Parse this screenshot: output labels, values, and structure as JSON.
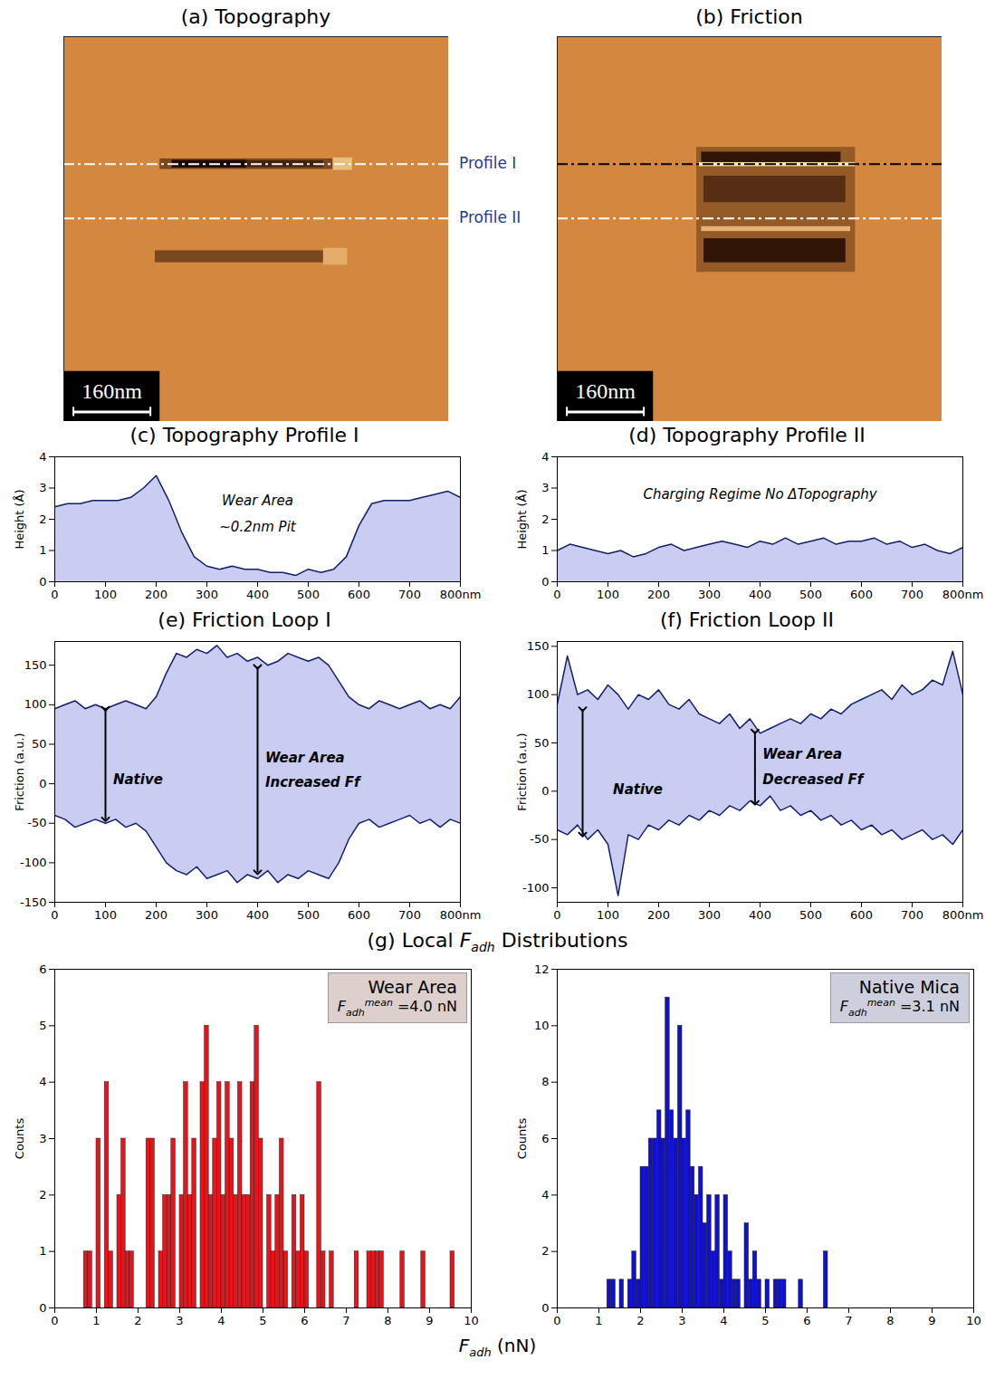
{
  "chart_data": [
    {
      "type": "image",
      "title": "(a) Topography",
      "xlim": [
        0,
        800
      ],
      "ylim": [
        0,
        800
      ],
      "zlim": [
        -1,
        1
      ],
      "background": 0,
      "features": [
        {
          "x0": 200,
          "x1": 560,
          "y0": 254,
          "y1": 276,
          "level": -0.5
        },
        {
          "x0": 225,
          "x1": 380,
          "y0": 257,
          "y1": 273,
          "level": -1
        },
        {
          "x0": 380,
          "x1": 540,
          "y0": 258,
          "y1": 272,
          "level": -0.8
        },
        {
          "x0": 560,
          "x1": 600,
          "y0": 252,
          "y1": 278,
          "level": 0.5
        },
        {
          "x0": 190,
          "x1": 540,
          "y0": 445,
          "y1": 470,
          "level": -0.5
        },
        {
          "x0": 540,
          "x1": 590,
          "y0": 440,
          "y1": 475,
          "level": 0.35
        }
      ],
      "scale_bar": {
        "length": 160,
        "label": "160nm"
      },
      "profiles": [
        {
          "name": "Profile I",
          "y": 265,
          "color": "#ffffff"
        },
        {
          "name": "Profile II",
          "y": 378,
          "color": "#ffffff"
        }
      ]
    },
    {
      "type": "image",
      "title": "(b) Friction",
      "xlim": [
        0,
        800
      ],
      "ylim": [
        0,
        800
      ],
      "zlim": [
        -1,
        1
      ],
      "background": 0,
      "features": [
        {
          "x0": 290,
          "x1": 620,
          "y0": 230,
          "y1": 490,
          "level": -0.35
        },
        {
          "x0": 300,
          "x1": 590,
          "y0": 240,
          "y1": 262,
          "level": -0.9
        },
        {
          "x0": 295,
          "x1": 620,
          "y0": 262,
          "y1": 270,
          "level": 0.9
        },
        {
          "x0": 305,
          "x1": 600,
          "y0": 290,
          "y1": 345,
          "level": -0.7
        },
        {
          "x0": 300,
          "x1": 610,
          "y0": 395,
          "y1": 405,
          "level": 0.4
        },
        {
          "x0": 305,
          "x1": 600,
          "y0": 420,
          "y1": 470,
          "level": -0.9
        }
      ],
      "scale_bar": {
        "length": 160,
        "label": "160nm"
      },
      "profiles": [
        {
          "y": 265,
          "color": "#000000"
        },
        {
          "y": 378,
          "color": "#ffffff"
        }
      ]
    },
    {
      "type": "area",
      "title": "(c) Topography Profile I",
      "ylabel": "Height (Å)",
      "x": [
        0,
        25,
        50,
        75,
        100,
        125,
        150,
        175,
        200,
        225,
        250,
        275,
        300,
        325,
        350,
        375,
        400,
        425,
        450,
        475,
        500,
        525,
        550,
        575,
        600,
        625,
        650,
        675,
        700,
        725,
        750,
        775,
        800
      ],
      "values": [
        2.4,
        2.5,
        2.5,
        2.6,
        2.6,
        2.6,
        2.7,
        3.0,
        3.4,
        2.6,
        1.6,
        0.8,
        0.5,
        0.4,
        0.5,
        0.4,
        0.4,
        0.3,
        0.3,
        0.2,
        0.4,
        0.3,
        0.4,
        0.8,
        1.8,
        2.5,
        2.6,
        2.6,
        2.6,
        2.7,
        2.8,
        2.9,
        2.7
      ],
      "xlim": [
        0,
        800
      ],
      "xticks": [
        0,
        100,
        200,
        300,
        400,
        500,
        600,
        700,
        {
          "value": 800,
          "label": "800nm"
        }
      ],
      "ylim": [
        0,
        4
      ],
      "yticks": [
        0,
        1,
        2,
        3,
        4
      ],
      "annotations": [
        {
          "x": 400,
          "y": 2.6,
          "text": "Wear Area"
        },
        {
          "x": 400,
          "y": 1.75,
          "text": "~0.2nm Pit"
        }
      ]
    },
    {
      "type": "area",
      "title": "(d) Topography Profile II",
      "ylabel": "Height (Å)",
      "x": [
        0,
        25,
        50,
        75,
        100,
        125,
        150,
        175,
        200,
        225,
        250,
        275,
        300,
        325,
        350,
        375,
        400,
        425,
        450,
        475,
        500,
        525,
        550,
        575,
        600,
        625,
        650,
        675,
        700,
        725,
        750,
        775,
        800
      ],
      "values": [
        1.0,
        1.2,
        1.1,
        1.0,
        0.9,
        1.0,
        0.8,
        0.9,
        1.1,
        1.2,
        1.0,
        1.1,
        1.2,
        1.3,
        1.2,
        1.1,
        1.3,
        1.2,
        1.4,
        1.2,
        1.3,
        1.4,
        1.2,
        1.3,
        1.3,
        1.4,
        1.2,
        1.3,
        1.1,
        1.2,
        1.0,
        0.9,
        1.1
      ],
      "xlim": [
        0,
        800
      ],
      "xticks": [
        0,
        100,
        200,
        300,
        400,
        500,
        600,
        700,
        {
          "value": 800,
          "label": "800nm"
        }
      ],
      "ylim": [
        0,
        4
      ],
      "yticks": [
        0,
        1,
        2,
        3,
        4
      ],
      "annotations": [
        {
          "x": 400,
          "y": 2.8,
          "text": "Charging Regime No ΔTopography"
        }
      ]
    },
    {
      "type": "band",
      "title": "(e) Friction Loop I",
      "ylabel": "Friction (a.u.)",
      "x": [
        0,
        20,
        40,
        60,
        80,
        100,
        120,
        140,
        160,
        180,
        200,
        220,
        240,
        260,
        280,
        300,
        320,
        340,
        360,
        380,
        400,
        420,
        440,
        460,
        480,
        500,
        520,
        540,
        560,
        580,
        600,
        620,
        640,
        660,
        680,
        700,
        720,
        740,
        760,
        780,
        800
      ],
      "upper": [
        95,
        100,
        105,
        95,
        100,
        95,
        100,
        105,
        100,
        95,
        110,
        140,
        165,
        160,
        170,
        165,
        175,
        160,
        165,
        155,
        160,
        150,
        155,
        165,
        160,
        155,
        160,
        150,
        130,
        110,
        100,
        95,
        105,
        100,
        95,
        100,
        105,
        95,
        100,
        95,
        110
      ],
      "lower": [
        -40,
        -45,
        -55,
        -50,
        -45,
        -50,
        -45,
        -55,
        -50,
        -60,
        -80,
        -100,
        -110,
        -115,
        -105,
        -120,
        -115,
        -110,
        -125,
        -115,
        -120,
        -110,
        -125,
        -115,
        -120,
        -110,
        -115,
        -120,
        -100,
        -70,
        -50,
        -45,
        -55,
        -50,
        -45,
        -40,
        -50,
        -45,
        -55,
        -45,
        -50
      ],
      "xlim": [
        0,
        800
      ],
      "xticks": [
        0,
        100,
        200,
        300,
        400,
        500,
        600,
        700,
        {
          "value": 800,
          "label": "800nm"
        }
      ],
      "ylim": [
        -150,
        180
      ],
      "yticks": [
        -150,
        -100,
        -50,
        0,
        50,
        100,
        150
      ],
      "arrows": [
        {
          "x": 100,
          "y1": 95,
          "y2": -45
        },
        {
          "x": 400,
          "y1": 148,
          "y2": -112
        }
      ],
      "annotations": [
        {
          "x": 115,
          "y": 5,
          "text": "Native"
        },
        {
          "x": 415,
          "y": 32,
          "text": "Wear Area"
        },
        {
          "x": 415,
          "y": 2,
          "text": "Increased Ff"
        }
      ]
    },
    {
      "type": "band",
      "title": "(f) Friction Loop II",
      "ylabel": "Friction (a.u.)",
      "x": [
        0,
        20,
        40,
        60,
        80,
        100,
        120,
        140,
        160,
        180,
        200,
        220,
        240,
        260,
        280,
        300,
        320,
        340,
        360,
        380,
        400,
        420,
        440,
        460,
        480,
        500,
        520,
        540,
        560,
        580,
        600,
        620,
        640,
        660,
        680,
        700,
        720,
        740,
        760,
        780,
        800
      ],
      "upper": [
        90,
        140,
        100,
        105,
        95,
        110,
        100,
        85,
        100,
        95,
        105,
        90,
        85,
        95,
        80,
        75,
        70,
        80,
        65,
        75,
        60,
        65,
        70,
        75,
        70,
        80,
        75,
        85,
        80,
        90,
        95,
        100,
        105,
        95,
        110,
        100,
        105,
        115,
        110,
        145,
        100
      ],
      "lower": [
        -40,
        -45,
        -35,
        -50,
        -40,
        -55,
        -108,
        -45,
        -50,
        -35,
        -40,
        -30,
        -35,
        -25,
        -30,
        -20,
        -25,
        -15,
        -20,
        -10,
        -15,
        -5,
        -20,
        -15,
        -25,
        -20,
        -30,
        -25,
        -35,
        -30,
        -40,
        -35,
        -45,
        -40,
        -50,
        -45,
        -40,
        -50,
        -45,
        -55,
        -40
      ],
      "xlim": [
        0,
        800
      ],
      "xticks": [
        0,
        100,
        200,
        300,
        400,
        500,
        600,
        700,
        {
          "value": 800,
          "label": "800nm"
        }
      ],
      "ylim": [
        -115,
        155
      ],
      "yticks": [
        -100,
        -50,
        0,
        50,
        100,
        150
      ],
      "arrows": [
        {
          "x": 50,
          "y1": 85,
          "y2": -45
        },
        {
          "x": 390,
          "y1": 62,
          "y2": -12
        }
      ],
      "annotations": [
        {
          "x": 110,
          "y": 2,
          "text": "Native"
        },
        {
          "x": 405,
          "y": 38,
          "text": "Wear Area"
        },
        {
          "x": 405,
          "y": 12,
          "text": "Decreased Ff"
        }
      ]
    },
    {
      "type": "histogram",
      "title": "Wear Area",
      "color": "#e8141b",
      "ylabel": "Counts",
      "stat_symbol": "F",
      "stat_subscript": "adh",
      "stat_superscript": "mean",
      "stat_text": "=4.0 nN",
      "bins": [
        0.7,
        0.8,
        0.9,
        1.0,
        1.1,
        1.2,
        1.3,
        1.4,
        1.5,
        1.6,
        1.7,
        1.8,
        1.9,
        2.0,
        2.1,
        2.2,
        2.3,
        2.4,
        2.5,
        2.6,
        2.7,
        2.8,
        2.9,
        3.0,
        3.1,
        3.2,
        3.3,
        3.4,
        3.5,
        3.6,
        3.7,
        3.8,
        3.9,
        4.0,
        4.1,
        4.2,
        4.3,
        4.4,
        4.5,
        4.6,
        4.7,
        4.8,
        4.9,
        5.0,
        5.1,
        5.2,
        5.3,
        5.4,
        5.5,
        5.6,
        5.7,
        5.8,
        5.9,
        6.0,
        6.1,
        6.2,
        6.3,
        6.4,
        6.5,
        6.6,
        6.7,
        6.8,
        6.9,
        7.0,
        7.1,
        7.2,
        7.3,
        7.4,
        7.5,
        7.6,
        7.7,
        7.8,
        7.9,
        8.0,
        8.1,
        8.2,
        8.3,
        8.4,
        8.5,
        8.6,
        8.7,
        8.8,
        8.9,
        9.0,
        9.1,
        9.2,
        9.3,
        9.4,
        9.5,
        9.6
      ],
      "counts": [
        1,
        1,
        0,
        3,
        0,
        4,
        1,
        0,
        2,
        3,
        1,
        1,
        0,
        0,
        0,
        3,
        3,
        0,
        1,
        2,
        2,
        3,
        0,
        2,
        4,
        2,
        3,
        0,
        4,
        5,
        2,
        3,
        4,
        2,
        4,
        3,
        2,
        4,
        2,
        2,
        4,
        5,
        3,
        0,
        2,
        1,
        2,
        3,
        1,
        0,
        2,
        1,
        2,
        1,
        0,
        0,
        4,
        1,
        0,
        1,
        0,
        0,
        0,
        0,
        0,
        1,
        0,
        0,
        1,
        1,
        1,
        1,
        0,
        0,
        0,
        0,
        1,
        0,
        0,
        0,
        0,
        1,
        0,
        0,
        0,
        0,
        0,
        0,
        1
      ],
      "xlim": [
        0,
        10
      ],
      "xticks": [
        0,
        1,
        2,
        3,
        4,
        5,
        6,
        7,
        8,
        9,
        10
      ],
      "ylim": [
        0,
        6
      ],
      "yticks": [
        0,
        1,
        2,
        3,
        4,
        5,
        6
      ]
    },
    {
      "type": "histogram",
      "title": "Native Mica",
      "color": "#1010d0",
      "ylabel": "Counts",
      "stat_symbol": "F",
      "stat_subscript": "adh",
      "stat_superscript": "mean",
      "stat_text": "=3.1 nN",
      "bins": [
        1.2,
        1.3,
        1.4,
        1.5,
        1.6,
        1.7,
        1.8,
        1.9,
        2.0,
        2.1,
        2.2,
        2.3,
        2.4,
        2.5,
        2.6,
        2.7,
        2.8,
        2.9,
        3.0,
        3.1,
        3.2,
        3.3,
        3.4,
        3.5,
        3.6,
        3.7,
        3.8,
        3.9,
        4.0,
        4.1,
        4.2,
        4.3,
        4.4,
        4.5,
        4.6,
        4.7,
        4.8,
        4.9,
        5.0,
        5.1,
        5.2,
        5.3,
        5.4,
        5.5,
        5.6,
        5.7,
        5.8,
        5.9,
        6.0,
        6.1,
        6.2,
        6.3,
        6.4,
        6.5
      ],
      "counts": [
        1,
        1,
        0,
        1,
        0,
        1,
        2,
        1,
        5,
        5,
        6,
        6,
        7,
        6,
        11,
        7,
        6,
        10,
        6,
        7,
        5,
        4,
        5,
        3,
        4,
        2,
        4,
        1,
        4,
        2,
        1,
        1,
        0,
        3,
        1,
        2,
        1,
        0,
        1,
        0,
        1,
        1,
        1,
        0,
        0,
        0,
        1,
        0,
        0,
        0,
        0,
        0,
        2
      ],
      "xlim": [
        0,
        10
      ],
      "xticks": [
        0,
        1,
        2,
        3,
        4,
        5,
        6,
        7,
        8,
        9,
        10
      ],
      "ylim": [
        0,
        12
      ],
      "yticks": [
        0,
        2,
        4,
        6,
        8,
        10,
        12
      ]
    }
  ],
  "group_g": {
    "title_prefix": "(g) Local ",
    "title_symbol": "F",
    "title_subscript": "adh",
    "title_suffix": " Distributions",
    "xlabel_symbol": "F",
    "xlabel_subscript": "adh",
    "xlabel_suffix": " (nN)"
  }
}
